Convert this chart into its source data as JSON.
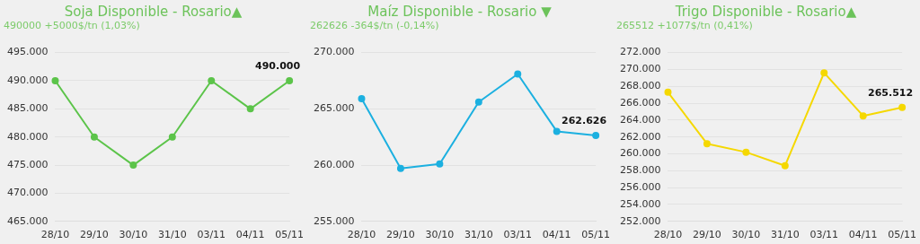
{
  "chart_data": [
    {
      "type": "line",
      "title": "Soja Disponible - Rosario▲",
      "subtitle": "490000 +5000$/tn (1,03%)",
      "categories": [
        "28/10",
        "29/10",
        "30/10",
        "31/10",
        "03/11",
        "04/11",
        "05/11"
      ],
      "series": [
        {
          "color": "#5cc44a",
          "values": [
            490000,
            480000,
            475000,
            480000,
            490000,
            485000,
            490000
          ],
          "value_labels": [
            null,
            null,
            null,
            null,
            null,
            null,
            "490.000"
          ]
        }
      ],
      "ylim": [
        465000,
        495000
      ],
      "yticks": [
        {
          "value": 465000,
          "label": "465.000"
        },
        {
          "value": 470000,
          "label": "470.000"
        },
        {
          "value": 475000,
          "label": "475.000"
        },
        {
          "value": 480000,
          "label": "480.000"
        },
        {
          "value": 485000,
          "label": "485.000"
        },
        {
          "value": 490000,
          "label": "490.000"
        },
        {
          "value": 495000,
          "label": "495.000"
        }
      ],
      "grid": "y",
      "legend": false,
      "marker": "circle",
      "line_style": "solid"
    },
    {
      "type": "line",
      "title": "Maíz Disponible - Rosario ▼",
      "subtitle": "262626 -364$/tn (-0,14%)",
      "categories": [
        "28/10",
        "29/10",
        "30/10",
        "31/10",
        "03/11",
        "04/11",
        "05/11"
      ],
      "series": [
        {
          "color": "#1cb0e0",
          "values": [
            265900,
            259700,
            260100,
            265600,
            268100,
            263000,
            262626
          ],
          "value_labels": [
            null,
            null,
            null,
            null,
            null,
            null,
            "262.626"
          ]
        }
      ],
      "ylim": [
        255000,
        270000
      ],
      "yticks": [
        {
          "value": 255000,
          "label": "255.000"
        },
        {
          "value": 260000,
          "label": "260.000"
        },
        {
          "value": 265000,
          "label": "265.000"
        },
        {
          "value": 270000,
          "label": "270.000"
        }
      ],
      "grid": "y",
      "legend": false,
      "marker": "circle",
      "line_style": "solid"
    },
    {
      "type": "line",
      "title": "Trigo Disponible - Rosario▲",
      "subtitle": "265512 +1077$/tn (0,41%)",
      "categories": [
        "28/10",
        "29/10",
        "30/10",
        "31/10",
        "03/11",
        "04/11",
        "05/11"
      ],
      "series": [
        {
          "color": "#f5d800",
          "values": [
            267300,
            261200,
            260200,
            258600,
            269600,
            264500,
            265512
          ],
          "value_labels": [
            null,
            null,
            null,
            null,
            null,
            null,
            "265.512"
          ]
        }
      ],
      "ylim": [
        252000,
        272000
      ],
      "yticks": [
        {
          "value": 252000,
          "label": "252.000"
        },
        {
          "value": 254000,
          "label": "254.000"
        },
        {
          "value": 256000,
          "label": "256.000"
        },
        {
          "value": 258000,
          "label": "258.000"
        },
        {
          "value": 260000,
          "label": "260.000"
        },
        {
          "value": 262000,
          "label": "262.000"
        },
        {
          "value": 264000,
          "label": "264.000"
        },
        {
          "value": 266000,
          "label": "266.000"
        },
        {
          "value": 268000,
          "label": "268.000"
        },
        {
          "value": 270000,
          "label": "270.000"
        },
        {
          "value": 272000,
          "label": "272.000"
        }
      ],
      "grid": "y",
      "legend": false,
      "marker": "circle",
      "line_style": "solid"
    }
  ]
}
